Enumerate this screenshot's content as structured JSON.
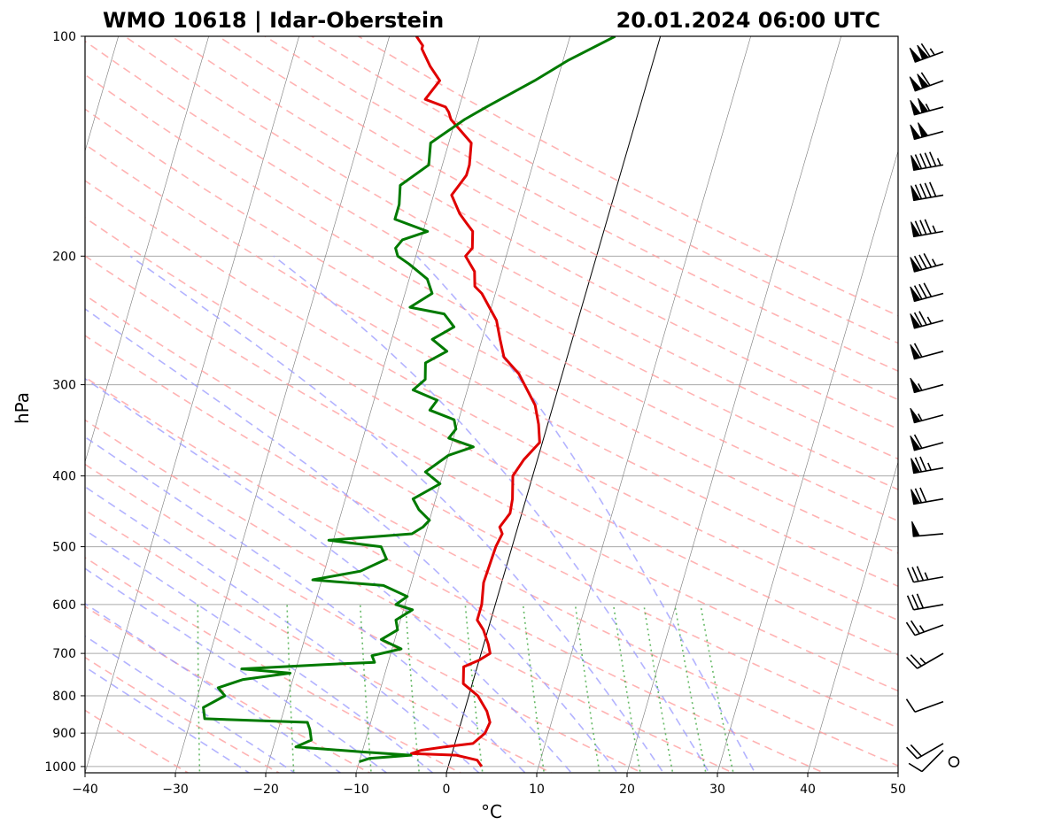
{
  "header": {
    "station": "WMO 10618 | Idar-Oberstein",
    "datetime": "20.01.2024 06:00 UTC"
  },
  "chart_data": {
    "type": "line",
    "subtype": "skew-t log-p sounding",
    "xlabel": "°C",
    "ylabel": "hPa",
    "xlim": [
      -40,
      50
    ],
    "ylim": [
      1020,
      100
    ],
    "y_scale": "log",
    "x_ticks": [
      -40,
      -30,
      -20,
      -10,
      0,
      10,
      20,
      30,
      40,
      50
    ],
    "x_tick_labels": [
      "−40",
      "−30",
      "−20",
      "−10",
      "0",
      "10",
      "20",
      "30",
      "40",
      "50"
    ],
    "y_ticks": [
      100,
      200,
      300,
      400,
      500,
      600,
      700,
      800,
      900,
      1000
    ],
    "y_tick_labels": [
      "100",
      "200",
      "300",
      "400",
      "500",
      "600",
      "700",
      "800",
      "900",
      "1000"
    ],
    "grid": true,
    "colors": {
      "temperature": "#e00000",
      "dewpoint": "#007a00",
      "dry_adiabats": "#ff9999",
      "moist_adiabats": "#9999ff",
      "mixing_ratio": "#44aa44",
      "isotherms": "#777777",
      "zero_isotherm": "#000000"
    },
    "series": [
      {
        "key": "temperature",
        "x": [
          3.7,
          3.0,
          0.5,
          -4.5,
          -3.5,
          -1.0,
          2.0,
          3.0,
          3.2,
          2.5,
          1.0,
          -1.0,
          -1.5,
          0.0,
          1.0,
          0.5,
          -0.5,
          -1.5,
          -1.5,
          -2.0,
          -1.8,
          -1.5,
          -2.0,
          -1.3,
          -1.5,
          -2.2,
          -1.5,
          -0.3,
          -1.0,
          -2.0,
          -4.8,
          -7.0,
          -8.0,
          -9.0,
          -11.5,
          -12.5,
          -13.0,
          -14.5,
          -14.0,
          -14.5,
          -15.5,
          -16.5,
          -18.0,
          -17.5,
          -17.0,
          -17.0,
          -17.5,
          -20.5,
          -21.0,
          -21.5,
          -24.0,
          -23.0,
          -24.5,
          -26.0,
          -26.0,
          -27.0
        ],
        "y": [
          1000,
          980,
          965,
          960,
          950,
          940,
          930,
          900,
          870,
          840,
          800,
          770,
          730,
          715,
          700,
          680,
          650,
          630,
          600,
          560,
          500,
          480,
          470,
          450,
          430,
          400,
          380,
          360,
          340,
          320,
          290,
          275,
          260,
          245,
          225,
          220,
          210,
          200,
          195,
          185,
          180,
          175,
          165,
          160,
          155,
          150,
          140,
          130,
          127,
          125,
          122,
          115,
          110,
          104,
          103,
          100
        ]
      },
      {
        "key": "dewpoint",
        "x": [
          -10.0,
          -9.0,
          -4.5,
          -10.0,
          -17.5,
          -16.0,
          -16.5,
          -17.0,
          -28.5,
          -29.0,
          -27.0,
          -28.0,
          -25.5,
          -20.5,
          -26.0,
          -17.0,
          -11.5,
          -12.0,
          -9.0,
          -11.5,
          -10.0,
          -10.5,
          -9.0,
          -11.0,
          -10.0,
          -13.0,
          -21.0,
          -16.0,
          -13.5,
          -14.5,
          -20.5,
          -11.5,
          -10.5,
          -10.0,
          -11.5,
          -12.5,
          -10.0,
          -12.0,
          -10.0,
          -7.5,
          -10.5,
          -10.0,
          -10.5,
          -13.5,
          -13.0,
          -16.0,
          -15.0,
          -15.5,
          -13.5,
          -15.5,
          -13.5,
          -15.0,
          -19.0,
          -17.0,
          -18.0,
          -20.5,
          -22.0,
          -22.5,
          -22.0,
          -19.5,
          -23.5,
          -23.5,
          -24.0,
          -21.5,
          -22.0,
          -19.0,
          -17.0,
          -12.5,
          -9.5,
          -5.0
        ],
        "y": [
          985,
          975,
          965,
          955,
          940,
          920,
          890,
          870,
          860,
          830,
          800,
          780,
          760,
          745,
          735,
          725,
          720,
          705,
          690,
          670,
          650,
          630,
          610,
          600,
          585,
          565,
          555,
          540,
          520,
          500,
          490,
          480,
          470,
          460,
          445,
          430,
          410,
          395,
          375,
          365,
          355,
          345,
          335,
          325,
          315,
          305,
          295,
          280,
          270,
          260,
          250,
          240,
          235,
          225,
          215,
          205,
          200,
          195,
          190,
          185,
          178,
          170,
          160,
          150,
          140,
          130,
          125,
          115,
          108,
          100
        ]
      }
    ],
    "wind_barbs": {
      "pressures": [
        985,
        950,
        930,
        815,
        700,
        640,
        600,
        550,
        480,
        430,
        390,
        360,
        330,
        300,
        270,
        245,
        225,
        205,
        185,
        165,
        150,
        135,
        125,
        115,
        105
      ],
      "speeds_kt": [
        0,
        10,
        20,
        10,
        25,
        25,
        30,
        35,
        50,
        70,
        75,
        60,
        55,
        55,
        60,
        75,
        80,
        85,
        85,
        90,
        95,
        100,
        105,
        110,
        115
      ],
      "directions_deg": [
        200,
        225,
        240,
        250,
        240,
        250,
        260,
        260,
        265,
        260,
        260,
        255,
        255,
        255,
        255,
        255,
        255,
        255,
        260,
        260,
        260,
        255,
        255,
        250,
        250
      ]
    }
  }
}
